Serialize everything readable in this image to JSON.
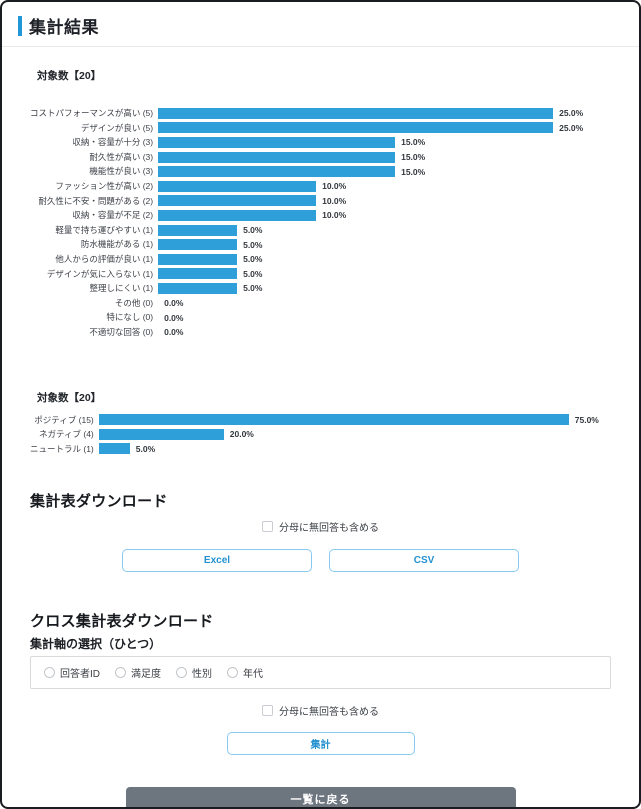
{
  "page": {
    "title": "集計結果"
  },
  "chart_data": [
    {
      "type": "bar",
      "orientation": "horizontal",
      "title": "対象数【20】",
      "unit": "%",
      "axis_range": [
        0,
        25
      ],
      "grid": false,
      "legend": false,
      "bar_color": "#2f9fda",
      "categories": [
        "コストパフォーマンスが高い (5)",
        "デザインが良い (5)",
        "収納・容量が十分 (3)",
        "耐久性が高い (3)",
        "機能性が良い (3)",
        "ファッション性が高い (2)",
        "耐久性に不安・問題がある (2)",
        "収納・容量が不足 (2)",
        "軽量で持ち運びやすい (1)",
        "防水機能がある (1)",
        "他人からの評価が良い (1)",
        "デザインが気に入らない (1)",
        "整理しにくい (1)",
        "その他 (0)",
        "特になし (0)",
        "不適切な回答 (0)"
      ],
      "counts": [
        5,
        5,
        3,
        3,
        3,
        2,
        2,
        2,
        1,
        1,
        1,
        1,
        1,
        0,
        0,
        0
      ],
      "values": [
        25.0,
        25.0,
        15.0,
        15.0,
        15.0,
        10.0,
        10.0,
        10.0,
        5.0,
        5.0,
        5.0,
        5.0,
        5.0,
        0.0,
        0.0,
        0.0
      ],
      "value_labels": [
        "25.0%",
        "25.0%",
        "15.0%",
        "15.0%",
        "15.0%",
        "10.0%",
        "10.0%",
        "10.0%",
        "5.0%",
        "5.0%",
        "5.0%",
        "5.0%",
        "5.0%",
        "0.0%",
        "0.0%",
        "0.0%"
      ]
    },
    {
      "type": "bar",
      "orientation": "horizontal",
      "title": "対象数【20】",
      "unit": "%",
      "axis_range": [
        0,
        75
      ],
      "grid": false,
      "legend": false,
      "bar_color": "#2f9fda",
      "categories": [
        "ポジティブ (15)",
        "ネガティブ (4)",
        "ニュートラル (1)"
      ],
      "counts": [
        15,
        4,
        1
      ],
      "values": [
        75.0,
        20.0,
        5.0
      ],
      "value_labels": [
        "75.0%",
        "20.0%",
        "5.0%"
      ]
    }
  ],
  "download_section": {
    "heading": "集計表ダウンロード",
    "checkbox_label": "分母に無回答も含める",
    "checkbox_checked": false,
    "excel_label": "Excel",
    "csv_label": "CSV"
  },
  "cross_section": {
    "heading": "クロス集計表ダウンロード",
    "axis_heading": "集計軸の選択（ひとつ）",
    "axis_options": [
      "回答者ID",
      "満足度",
      "性別",
      "年代"
    ],
    "selected_axis": null,
    "checkbox_label": "分母に無回答も含める",
    "checkbox_checked": false,
    "submit_label": "集計"
  },
  "footer": {
    "back_label": "一覧に戻る"
  },
  "colors": {
    "bar": "#2f9fda",
    "title_accent": "#2196d9",
    "outline_button_border": "#8ac9ee",
    "outline_button_text": "#2492d0",
    "back_button_bg": "#6d757f"
  }
}
